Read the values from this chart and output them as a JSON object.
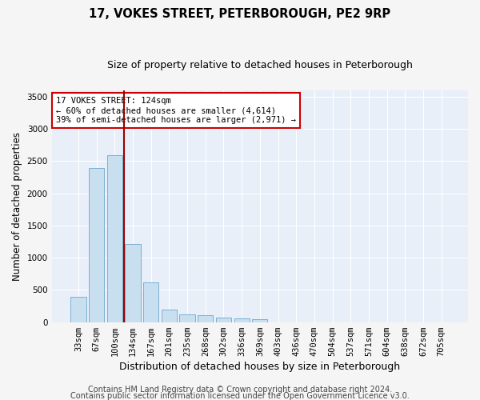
{
  "title": "17, VOKES STREET, PETERBOROUGH, PE2 9RP",
  "subtitle": "Size of property relative to detached houses in Peterborough",
  "xlabel": "Distribution of detached houses by size in Peterborough",
  "ylabel": "Number of detached properties",
  "categories": [
    "33sqm",
    "67sqm",
    "100sqm",
    "134sqm",
    "167sqm",
    "201sqm",
    "235sqm",
    "268sqm",
    "302sqm",
    "336sqm",
    "369sqm",
    "403sqm",
    "436sqm",
    "470sqm",
    "504sqm",
    "537sqm",
    "571sqm",
    "604sqm",
    "638sqm",
    "672sqm",
    "705sqm"
  ],
  "values": [
    390,
    2390,
    2590,
    1210,
    615,
    195,
    120,
    110,
    75,
    55,
    50,
    0,
    0,
    0,
    0,
    0,
    0,
    0,
    0,
    0,
    0
  ],
  "bar_color": "#c8dff0",
  "bar_edgecolor": "#7aafd4",
  "vline_color": "#990000",
  "vline_x": 2.5,
  "annotation_text": "17 VOKES STREET: 124sqm\n← 60% of detached houses are smaller (4,614)\n39% of semi-detached houses are larger (2,971) →",
  "annotation_box_facecolor": "#ffffff",
  "annotation_box_edgecolor": "#cc0000",
  "ylim": [
    0,
    3600
  ],
  "yticks": [
    0,
    500,
    1000,
    1500,
    2000,
    2500,
    3000,
    3500
  ],
  "fig_facecolor": "#f5f5f5",
  "axes_facecolor": "#e8eff8",
  "grid_color": "#ffffff",
  "title_fontsize": 10.5,
  "subtitle_fontsize": 9,
  "ylabel_fontsize": 8.5,
  "xlabel_fontsize": 9,
  "tick_fontsize": 7.5,
  "annot_fontsize": 7.5,
  "footer_fontsize": 7,
  "footer1": "Contains HM Land Registry data © Crown copyright and database right 2024.",
  "footer2": "Contains public sector information licensed under the Open Government Licence v3.0."
}
